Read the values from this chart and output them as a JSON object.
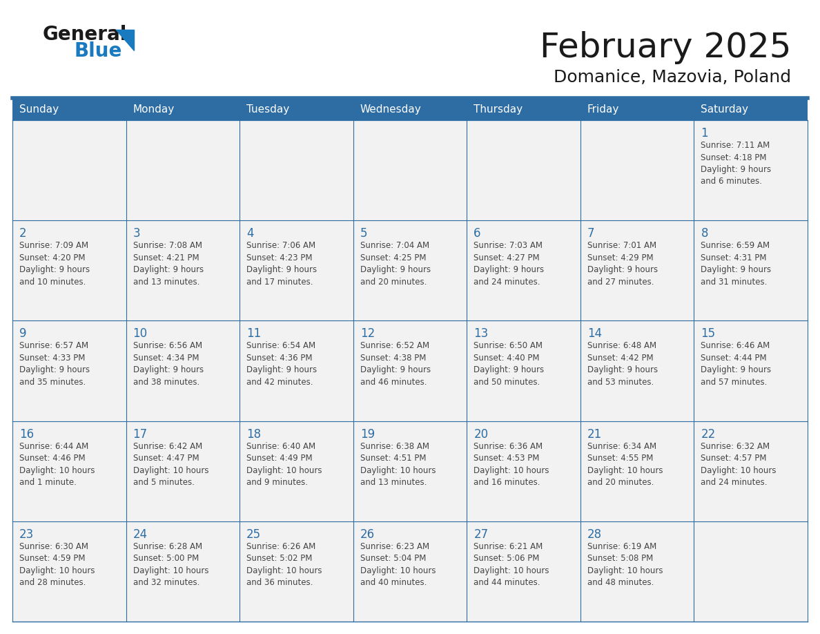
{
  "title": "February 2025",
  "subtitle": "Domanice, Mazovia, Poland",
  "header_color": "#2E6DA4",
  "header_text_color": "#FFFFFF",
  "cell_bg_odd": "#F2F2F2",
  "cell_bg_even": "#FFFFFF",
  "border_color": "#2E6DA4",
  "text_color": "#444444",
  "day_number_color": "#2E6DA4",
  "separator_color": "#2E6DA4",
  "days_of_week": [
    "Sunday",
    "Monday",
    "Tuesday",
    "Wednesday",
    "Thursday",
    "Friday",
    "Saturday"
  ],
  "weeks": [
    [
      {
        "day": null,
        "info": null
      },
      {
        "day": null,
        "info": null
      },
      {
        "day": null,
        "info": null
      },
      {
        "day": null,
        "info": null
      },
      {
        "day": null,
        "info": null
      },
      {
        "day": null,
        "info": null
      },
      {
        "day": 1,
        "info": "Sunrise: 7:11 AM\nSunset: 4:18 PM\nDaylight: 9 hours\nand 6 minutes."
      }
    ],
    [
      {
        "day": 2,
        "info": "Sunrise: 7:09 AM\nSunset: 4:20 PM\nDaylight: 9 hours\nand 10 minutes."
      },
      {
        "day": 3,
        "info": "Sunrise: 7:08 AM\nSunset: 4:21 PM\nDaylight: 9 hours\nand 13 minutes."
      },
      {
        "day": 4,
        "info": "Sunrise: 7:06 AM\nSunset: 4:23 PM\nDaylight: 9 hours\nand 17 minutes."
      },
      {
        "day": 5,
        "info": "Sunrise: 7:04 AM\nSunset: 4:25 PM\nDaylight: 9 hours\nand 20 minutes."
      },
      {
        "day": 6,
        "info": "Sunrise: 7:03 AM\nSunset: 4:27 PM\nDaylight: 9 hours\nand 24 minutes."
      },
      {
        "day": 7,
        "info": "Sunrise: 7:01 AM\nSunset: 4:29 PM\nDaylight: 9 hours\nand 27 minutes."
      },
      {
        "day": 8,
        "info": "Sunrise: 6:59 AM\nSunset: 4:31 PM\nDaylight: 9 hours\nand 31 minutes."
      }
    ],
    [
      {
        "day": 9,
        "info": "Sunrise: 6:57 AM\nSunset: 4:33 PM\nDaylight: 9 hours\nand 35 minutes."
      },
      {
        "day": 10,
        "info": "Sunrise: 6:56 AM\nSunset: 4:34 PM\nDaylight: 9 hours\nand 38 minutes."
      },
      {
        "day": 11,
        "info": "Sunrise: 6:54 AM\nSunset: 4:36 PM\nDaylight: 9 hours\nand 42 minutes."
      },
      {
        "day": 12,
        "info": "Sunrise: 6:52 AM\nSunset: 4:38 PM\nDaylight: 9 hours\nand 46 minutes."
      },
      {
        "day": 13,
        "info": "Sunrise: 6:50 AM\nSunset: 4:40 PM\nDaylight: 9 hours\nand 50 minutes."
      },
      {
        "day": 14,
        "info": "Sunrise: 6:48 AM\nSunset: 4:42 PM\nDaylight: 9 hours\nand 53 minutes."
      },
      {
        "day": 15,
        "info": "Sunrise: 6:46 AM\nSunset: 4:44 PM\nDaylight: 9 hours\nand 57 minutes."
      }
    ],
    [
      {
        "day": 16,
        "info": "Sunrise: 6:44 AM\nSunset: 4:46 PM\nDaylight: 10 hours\nand 1 minute."
      },
      {
        "day": 17,
        "info": "Sunrise: 6:42 AM\nSunset: 4:47 PM\nDaylight: 10 hours\nand 5 minutes."
      },
      {
        "day": 18,
        "info": "Sunrise: 6:40 AM\nSunset: 4:49 PM\nDaylight: 10 hours\nand 9 minutes."
      },
      {
        "day": 19,
        "info": "Sunrise: 6:38 AM\nSunset: 4:51 PM\nDaylight: 10 hours\nand 13 minutes."
      },
      {
        "day": 20,
        "info": "Sunrise: 6:36 AM\nSunset: 4:53 PM\nDaylight: 10 hours\nand 16 minutes."
      },
      {
        "day": 21,
        "info": "Sunrise: 6:34 AM\nSunset: 4:55 PM\nDaylight: 10 hours\nand 20 minutes."
      },
      {
        "day": 22,
        "info": "Sunrise: 6:32 AM\nSunset: 4:57 PM\nDaylight: 10 hours\nand 24 minutes."
      }
    ],
    [
      {
        "day": 23,
        "info": "Sunrise: 6:30 AM\nSunset: 4:59 PM\nDaylight: 10 hours\nand 28 minutes."
      },
      {
        "day": 24,
        "info": "Sunrise: 6:28 AM\nSunset: 5:00 PM\nDaylight: 10 hours\nand 32 minutes."
      },
      {
        "day": 25,
        "info": "Sunrise: 6:26 AM\nSunset: 5:02 PM\nDaylight: 10 hours\nand 36 minutes."
      },
      {
        "day": 26,
        "info": "Sunrise: 6:23 AM\nSunset: 5:04 PM\nDaylight: 10 hours\nand 40 minutes."
      },
      {
        "day": 27,
        "info": "Sunrise: 6:21 AM\nSunset: 5:06 PM\nDaylight: 10 hours\nand 44 minutes."
      },
      {
        "day": 28,
        "info": "Sunrise: 6:19 AM\nSunset: 5:08 PM\nDaylight: 10 hours\nand 48 minutes."
      },
      {
        "day": null,
        "info": null
      }
    ]
  ],
  "logo_text1": "General",
  "logo_text2": "Blue",
  "logo_color1": "#1a1a1a",
  "logo_color2": "#1a7abf",
  "logo_triangle_color": "#1a7abf",
  "title_fontsize": 36,
  "subtitle_fontsize": 18,
  "header_fontsize": 11,
  "day_num_fontsize": 12,
  "info_fontsize": 8.5
}
